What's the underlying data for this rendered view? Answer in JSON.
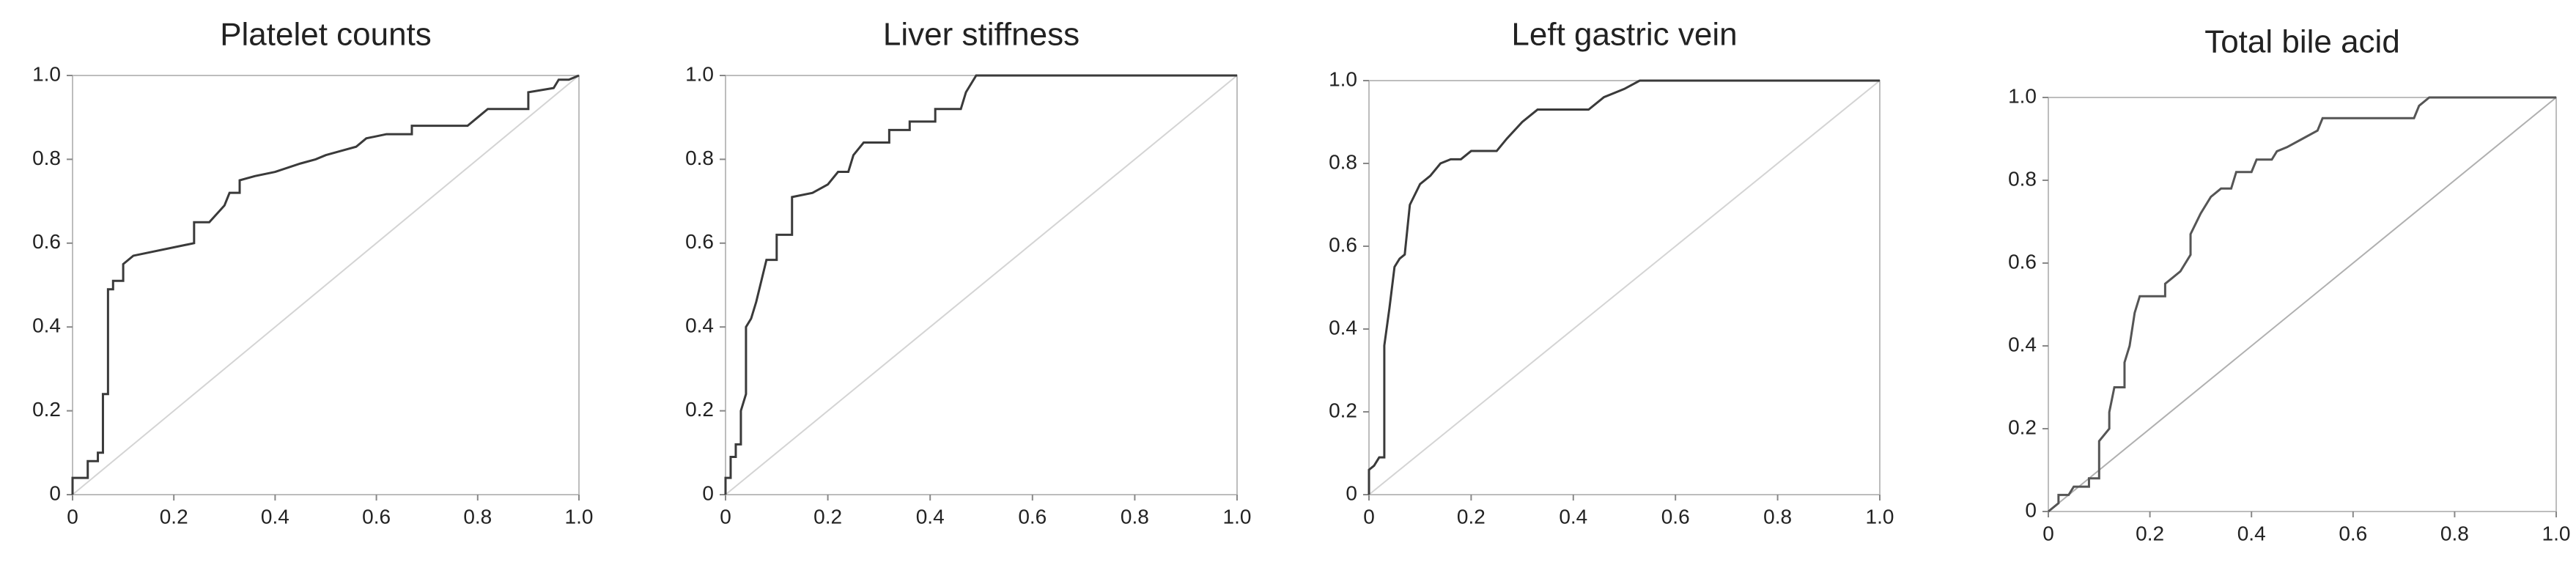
{
  "chart_data": [
    {
      "type": "line",
      "title": "Platelet counts",
      "series": [
        {
          "color": "#3a3a3a",
          "x": [
            0,
            0,
            0.03,
            0.03,
            0.05,
            0.05,
            0.06,
            0.06,
            0.07,
            0.07,
            0.08,
            0.08,
            0.1,
            0.1,
            0.12,
            0.24,
            0.24,
            0.27,
            0.3,
            0.31,
            0.33,
            0.33,
            0.36,
            0.4,
            0.45,
            0.48,
            0.5,
            0.53,
            0.56,
            0.58,
            0.62,
            0.67,
            0.67,
            0.78,
            0.8,
            0.82,
            0.9,
            0.9,
            0.95,
            0.96,
            0.98,
            1
          ],
          "values": [
            0,
            0.04,
            0.04,
            0.08,
            0.08,
            0.1,
            0.1,
            0.24,
            0.24,
            0.49,
            0.49,
            0.51,
            0.51,
            0.55,
            0.57,
            0.6,
            0.65,
            0.65,
            0.69,
            0.72,
            0.72,
            0.75,
            0.76,
            0.77,
            0.79,
            0.8,
            0.81,
            0.82,
            0.83,
            0.85,
            0.86,
            0.86,
            0.88,
            0.88,
            0.9,
            0.92,
            0.92,
            0.96,
            0.97,
            0.99,
            0.99,
            1
          ]
        },
        {
          "color": "#d4d4d4",
          "x": [
            0,
            1
          ],
          "values": [
            0,
            1
          ]
        }
      ],
      "xlim": [
        0,
        1
      ],
      "ylim": [
        0,
        1
      ],
      "xticks": [
        0,
        0.2,
        0.4,
        0.6,
        0.8,
        {
          "value": 1,
          "label": "1.0"
        }
      ],
      "yticks": [
        0,
        0.2,
        0.4,
        0.6,
        0.8,
        {
          "value": 1,
          "label": "1.0"
        }
      ]
    },
    {
      "type": "line",
      "title": "Liver stiffness",
      "series": [
        {
          "color": "#3a3a3a",
          "x": [
            0,
            0,
            0.01,
            0.01,
            0.02,
            0.02,
            0.03,
            0.03,
            0.04,
            0.04,
            0.05,
            0.06,
            0.08,
            0.1,
            0.1,
            0.13,
            0.13,
            0.17,
            0.2,
            0.22,
            0.24,
            0.25,
            0.27,
            0.32,
            0.32,
            0.36,
            0.36,
            0.41,
            0.41,
            0.46,
            0.47,
            0.49,
            1
          ],
          "values": [
            0,
            0.04,
            0.04,
            0.09,
            0.09,
            0.12,
            0.12,
            0.2,
            0.24,
            0.4,
            0.42,
            0.46,
            0.56,
            0.56,
            0.62,
            0.62,
            0.71,
            0.72,
            0.74,
            0.77,
            0.77,
            0.81,
            0.84,
            0.84,
            0.87,
            0.87,
            0.89,
            0.89,
            0.92,
            0.92,
            0.96,
            1,
            1
          ]
        },
        {
          "color": "#d4d4d4",
          "x": [
            0,
            1
          ],
          "values": [
            0,
            1
          ]
        }
      ],
      "xlim": [
        0,
        1
      ],
      "ylim": [
        0,
        1
      ],
      "xticks": [
        0,
        0.2,
        0.4,
        0.6,
        0.8,
        {
          "value": 1,
          "label": "1.0"
        }
      ],
      "yticks": [
        0,
        0.2,
        0.4,
        0.6,
        0.8,
        {
          "value": 1,
          "label": "1.0"
        }
      ]
    },
    {
      "type": "line",
      "title": "Left gastric vein",
      "series": [
        {
          "color": "#3a3a3a",
          "x": [
            0,
            0,
            0.01,
            0.02,
            0.03,
            0.03,
            0.04,
            0.05,
            0.06,
            0.07,
            0.08,
            0.1,
            0.12,
            0.14,
            0.16,
            0.18,
            0.2,
            0.25,
            0.27,
            0.3,
            0.33,
            0.43,
            0.46,
            0.5,
            0.53,
            1
          ],
          "values": [
            0,
            0.06,
            0.07,
            0.09,
            0.09,
            0.36,
            0.45,
            0.55,
            0.57,
            0.58,
            0.7,
            0.75,
            0.77,
            0.8,
            0.81,
            0.81,
            0.83,
            0.83,
            0.86,
            0.9,
            0.93,
            0.93,
            0.96,
            0.98,
            1,
            1
          ]
        },
        {
          "color": "#d4d4d4",
          "x": [
            0,
            1
          ],
          "values": [
            0,
            1
          ]
        }
      ],
      "xlim": [
        0,
        1
      ],
      "ylim": [
        0,
        1
      ],
      "xticks": [
        0,
        0.2,
        0.4,
        0.6,
        0.8,
        {
          "value": 1,
          "label": "1.0"
        }
      ],
      "yticks": [
        0,
        0.2,
        0.4,
        0.6,
        0.8,
        {
          "value": 1,
          "label": "1.0"
        }
      ]
    },
    {
      "type": "line",
      "title": "Total bile acid",
      "series": [
        {
          "color": "#555555",
          "x": [
            0,
            0.02,
            0.02,
            0.04,
            0.05,
            0.08,
            0.08,
            0.1,
            0.1,
            0.12,
            0.12,
            0.13,
            0.15,
            0.15,
            0.16,
            0.17,
            0.18,
            0.23,
            0.23,
            0.26,
            0.28,
            0.28,
            0.3,
            0.32,
            0.34,
            0.36,
            0.37,
            0.4,
            0.41,
            0.44,
            0.45,
            0.47,
            0.5,
            0.53,
            0.54,
            0.72,
            0.73,
            0.75,
            1
          ],
          "values": [
            0,
            0.02,
            0.04,
            0.04,
            0.06,
            0.06,
            0.08,
            0.08,
            0.17,
            0.2,
            0.24,
            0.3,
            0.3,
            0.36,
            0.4,
            0.48,
            0.52,
            0.52,
            0.55,
            0.58,
            0.62,
            0.67,
            0.72,
            0.76,
            0.78,
            0.78,
            0.82,
            0.82,
            0.85,
            0.85,
            0.87,
            0.88,
            0.9,
            0.92,
            0.95,
            0.95,
            0.98,
            1,
            1
          ]
        },
        {
          "color": "#b0b0b0",
          "x": [
            0,
            1
          ],
          "values": [
            0,
            1
          ]
        }
      ],
      "xlim": [
        0,
        1
      ],
      "ylim": [
        0,
        1
      ],
      "xticks": [
        0,
        0.2,
        0.4,
        0.6,
        0.8,
        {
          "value": 1,
          "label": "1.0"
        }
      ],
      "yticks": [
        0,
        0.2,
        0.4,
        0.6,
        0.8,
        {
          "value": 1,
          "label": "1.0"
        }
      ]
    }
  ]
}
